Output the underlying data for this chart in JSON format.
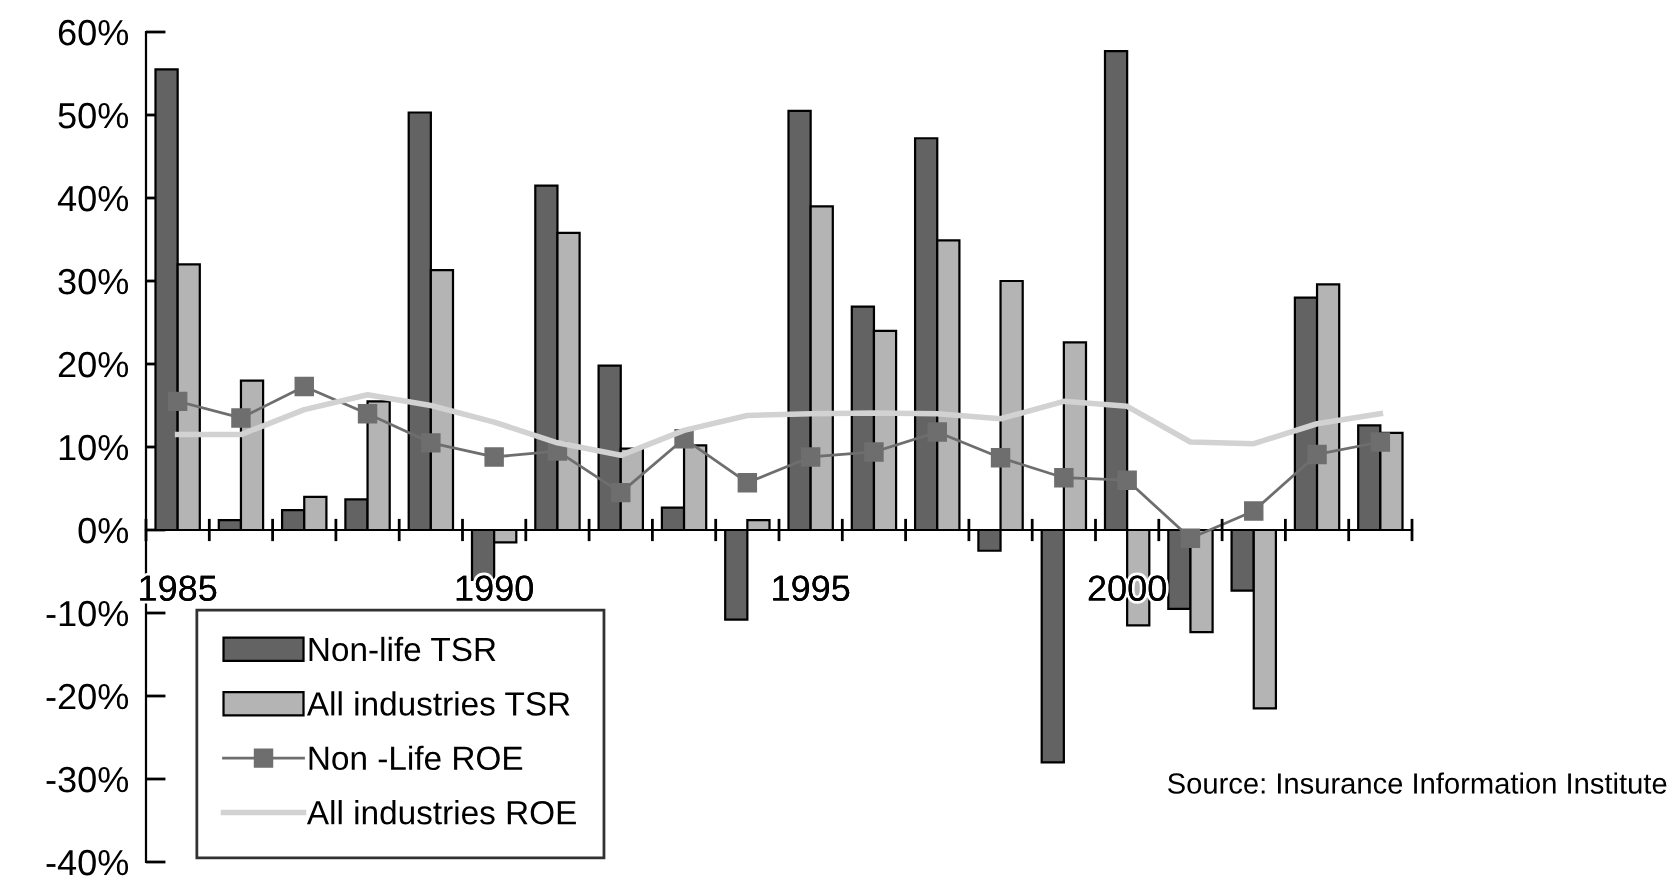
{
  "chart_data": {
    "type": "bar",
    "categories": [
      "1985",
      null,
      null,
      null,
      null,
      "1990",
      null,
      null,
      null,
      null,
      "1995",
      null,
      null,
      null,
      null,
      "2000",
      null,
      null,
      null,
      null
    ],
    "series": [
      {
        "name": "Non-life TSR",
        "color": "#636363",
        "values": [
          55.5,
          1.2,
          2.4,
          3.7,
          50.3,
          -6,
          41.5,
          19.8,
          2.7,
          -10.8,
          50.5,
          26.9,
          47.2,
          -2.5,
          -28,
          57.7,
          -9.5,
          -7.3,
          28,
          12.6
        ]
      },
      {
        "name": "All industries TSR",
        "color": "#b4b4b4",
        "values": [
          32,
          18,
          4,
          15.5,
          31.3,
          -1.5,
          35.8,
          9.8,
          10.2,
          1.2,
          39,
          24,
          34.9,
          30,
          22.6,
          -11.5,
          -12.3,
          -21.5,
          29.6,
          11.7
        ]
      },
      {
        "name": "Non -Life ROE",
        "type": "line",
        "color": "#6e6e6e",
        "marker": "square",
        "values": [
          15.5,
          13.5,
          17.3,
          14,
          10.5,
          8.8,
          9.5,
          4.5,
          11,
          5.7,
          8.8,
          9.4,
          11.8,
          8.7,
          6.3,
          6,
          -1,
          2.3,
          9.1,
          10.6
        ]
      },
      {
        "name": "All industries ROE",
        "type": "line",
        "color": "#d2d2d2",
        "marker": "none",
        "values": [
          11.5,
          11.5,
          14.5,
          16.3,
          15,
          13,
          10.5,
          9,
          12,
          13.8,
          14,
          14.1,
          14,
          13.4,
          15.5,
          14.9,
          10.6,
          10.4,
          12.8,
          14
        ]
      }
    ],
    "ylim": [
      -40,
      60
    ],
    "yticks": [
      {
        "value": -40,
        "label": "-40%"
      },
      {
        "value": -30,
        "label": "-30%"
      },
      {
        "value": -20,
        "label": "-20%"
      },
      {
        "value": -10,
        "label": "-10%"
      },
      {
        "value": 0,
        "label": "0%"
      },
      {
        "value": 10,
        "label": "10%"
      },
      {
        "value": 20,
        "label": "20%"
      },
      {
        "value": 30,
        "label": "30%"
      },
      {
        "value": 40,
        "label": "40%"
      },
      {
        "value": 50,
        "label": "50%"
      },
      {
        "value": 60,
        "label": "60%"
      }
    ],
    "grid": false,
    "legend": "bottom left",
    "annotations": [
      "Source: Insurance Information Institute"
    ]
  }
}
